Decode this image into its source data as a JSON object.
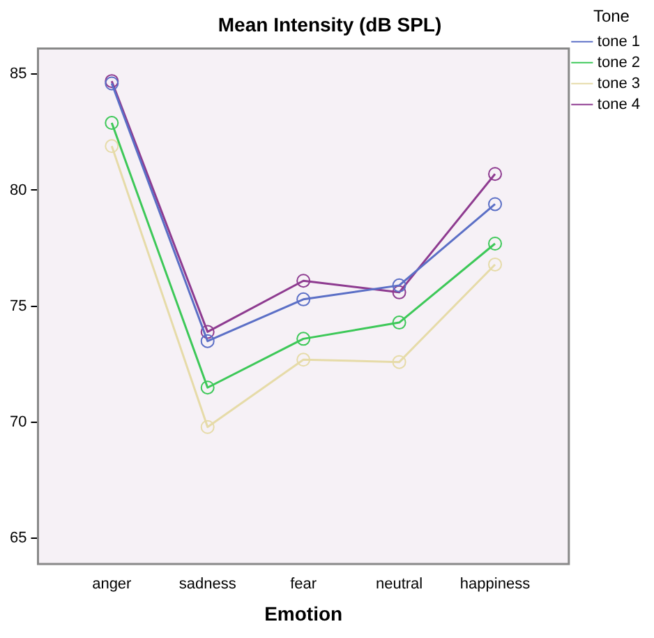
{
  "chart_data": {
    "type": "line",
    "title": "Mean Intensity (dB SPL)",
    "xlabel": "Emotion",
    "legend_title": "Tone",
    "categories": [
      "anger",
      "sadness",
      "fear",
      "neutral",
      "happiness"
    ],
    "series": [
      {
        "name": "tone 1",
        "color": "#5b6fc6",
        "values": [
          84.6,
          73.5,
          75.3,
          75.9,
          79.4
        ]
      },
      {
        "name": "tone 2",
        "color": "#3dc858",
        "values": [
          82.9,
          71.5,
          73.6,
          74.3,
          77.7
        ]
      },
      {
        "name": "tone 3",
        "color": "#e6dba8",
        "values": [
          81.9,
          69.8,
          72.7,
          72.6,
          76.8
        ]
      },
      {
        "name": "tone 4",
        "color": "#8e3b90",
        "values": [
          84.7,
          73.9,
          76.1,
          75.6,
          80.7
        ]
      }
    ],
    "ylim": [
      63.9,
      86.1
    ],
    "yticks": [
      65,
      70,
      75,
      80,
      85
    ],
    "grid": false,
    "legend": "top right",
    "marker": "circle",
    "line_style": "solid"
  }
}
